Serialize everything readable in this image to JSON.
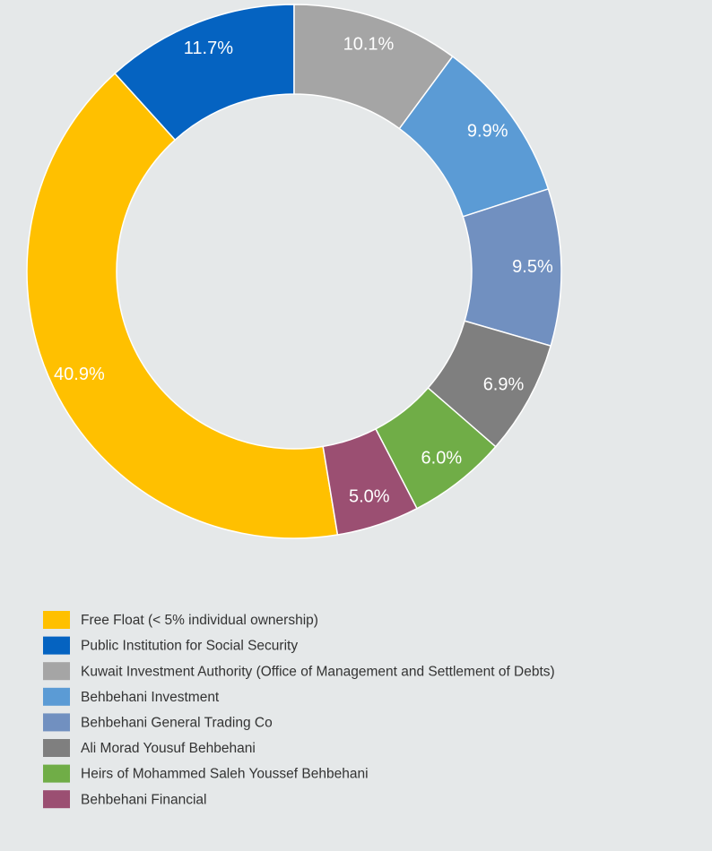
{
  "chart_data": {
    "type": "donut",
    "categories": [
      "Free Float (< 5% individual ownership)",
      "Public Institution for Social Security",
      "Kuwait Investment Authority (Office of Management and Settlement of Debts)",
      "Behbehani Investment",
      "Behbehani General Trading Co",
      "Ali Morad Yousuf Behbehani",
      "Heirs of Mohammed Saleh Youssef Behbehani",
      "Behbehani Financial"
    ],
    "values": [
      40.9,
      11.7,
      10.1,
      9.9,
      9.5,
      6.9,
      6.0,
      5.0
    ],
    "value_labels": [
      "40.9%",
      "11.7%",
      "10.1%",
      "9.9%",
      "9.5%",
      "6.9%",
      "6.0%",
      "5.0%"
    ],
    "colors": [
      "#ffc000",
      "#0563c1",
      "#a5a5a5",
      "#5b9bd5",
      "#7190c0",
      "#7f7f7f",
      "#70ad47",
      "#9b4f72"
    ],
    "legend": "bottom"
  }
}
